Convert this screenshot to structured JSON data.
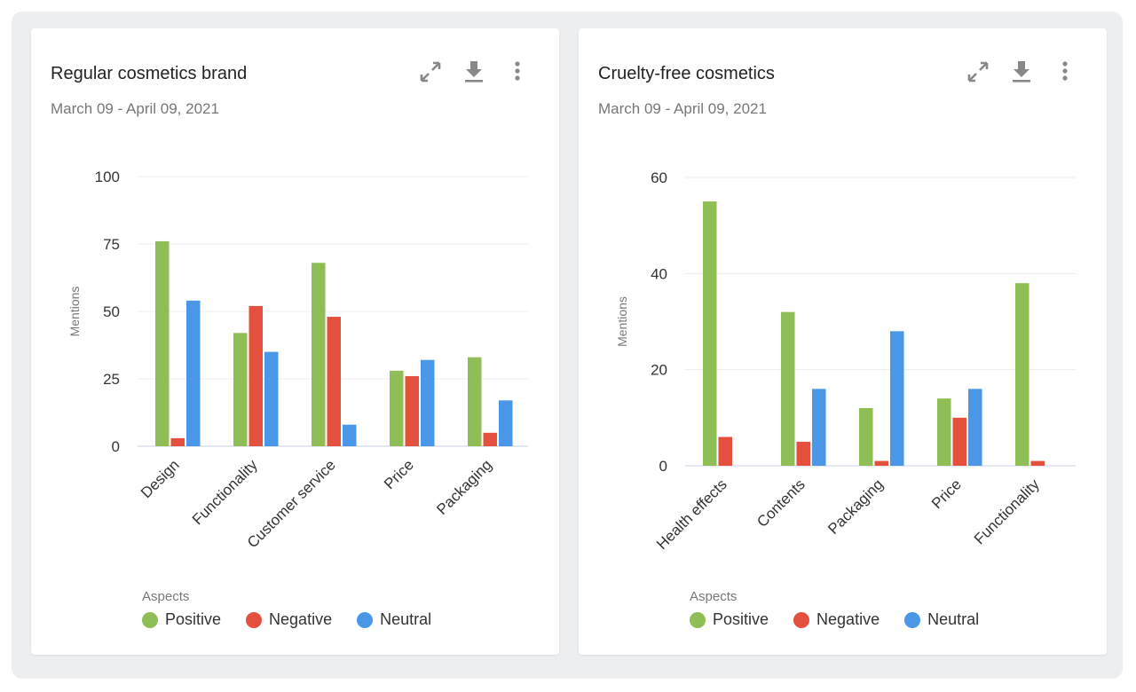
{
  "colors": {
    "Positive": "#8fbd56",
    "Negative": "#e4503d",
    "Neutral": "#4a97e8"
  },
  "icons": [
    "expand-icon",
    "download-icon",
    "more-vertical-icon"
  ],
  "chart_data": [
    {
      "type": "bar",
      "title": "Regular cosmetics brand",
      "subtitle": "March 09 - April 09, 2021",
      "ylabel": "Mentions",
      "xlabel": "",
      "ylim": [
        0,
        100
      ],
      "yticks": [
        0,
        25,
        50,
        75,
        100
      ],
      "grid": true,
      "legend_title": "Aspects",
      "legend_placement": "bottom-left",
      "categories": [
        "Design",
        "Functionality",
        "Customer service",
        "Price",
        "Packaging"
      ],
      "series": [
        {
          "name": "Positive",
          "values": [
            76,
            42,
            68,
            28,
            33
          ]
        },
        {
          "name": "Negative",
          "values": [
            3,
            52,
            48,
            26,
            5
          ]
        },
        {
          "name": "Neutral",
          "values": [
            54,
            35,
            8,
            32,
            17
          ]
        }
      ]
    },
    {
      "type": "bar",
      "title": "Cruelty-free cosmetics",
      "subtitle": "March 09 - April 09, 2021",
      "ylabel": "Mentions",
      "xlabel": "",
      "ylim": [
        0,
        60
      ],
      "yticks": [
        0,
        20,
        40,
        60
      ],
      "grid": true,
      "legend_title": "Aspects",
      "legend_placement": "bottom-left",
      "categories": [
        "Health effects",
        "Contents",
        "Packaging",
        "Price",
        "Functionality"
      ],
      "series": [
        {
          "name": "Positive",
          "values": [
            55,
            32,
            12,
            14,
            38
          ]
        },
        {
          "name": "Negative",
          "values": [
            6,
            5,
            1,
            10,
            1
          ]
        },
        {
          "name": "Neutral",
          "values": [
            0,
            16,
            28,
            16,
            0
          ]
        }
      ]
    }
  ]
}
